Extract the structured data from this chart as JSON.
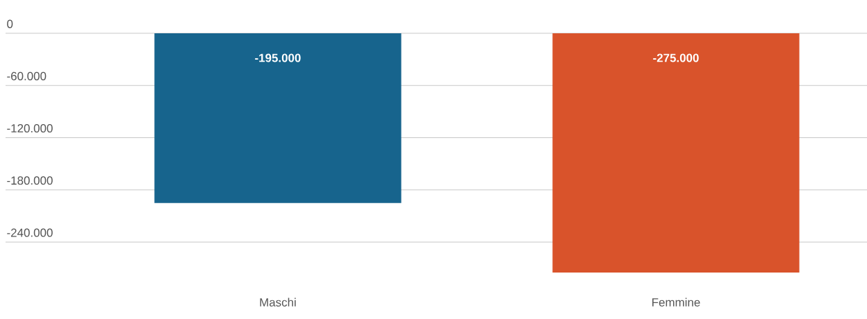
{
  "chart_data": {
    "type": "bar",
    "categories": [
      "Maschi",
      "Femmine"
    ],
    "values": [
      -195000,
      -275000
    ],
    "colors": [
      "#17648d",
      "#d9532b"
    ],
    "value_labels": [
      "-195.000",
      "-275.000"
    ],
    "ylim": [
      -275000,
      0
    ],
    "yticks": [
      {
        "value": 0,
        "label": "0"
      },
      {
        "value": -60000,
        "label": "-60.000"
      },
      {
        "value": -120000,
        "label": "-120.000"
      },
      {
        "value": -180000,
        "label": "-180.000"
      },
      {
        "value": -240000,
        "label": "-240.000"
      }
    ],
    "grid": "y"
  }
}
